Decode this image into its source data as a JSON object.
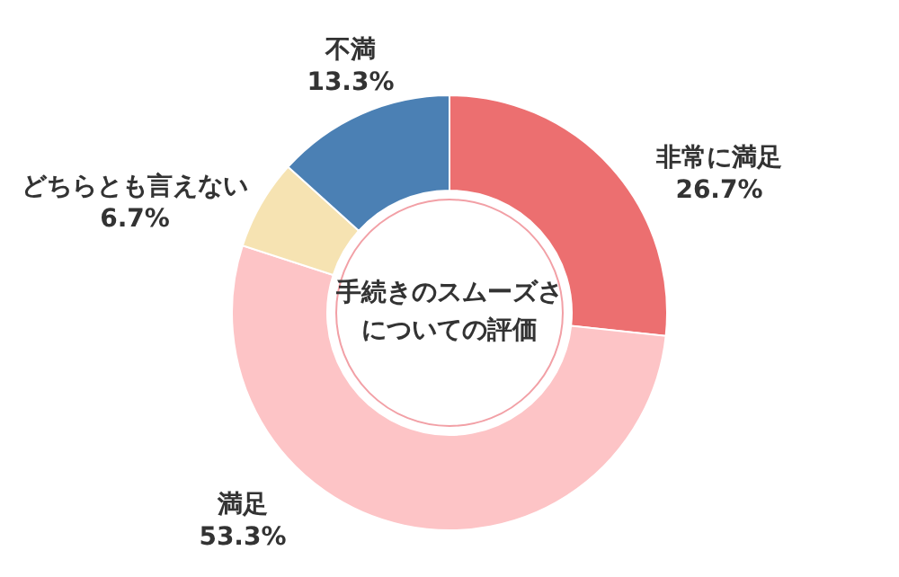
{
  "chart_data": {
    "type": "donut",
    "title": "手続きのスムーズさについての評価",
    "categories": [
      "非常に満足",
      "満足",
      "どちらとも言えない",
      "不満"
    ],
    "values": [
      26.7,
      53.3,
      6.7,
      13.3
    ],
    "value_labels": [
      "26.7%",
      "53.3%",
      "6.7%",
      "13.3%"
    ],
    "colors": [
      "#ec6f70",
      "#fdc4c6",
      "#f6e3b2",
      "#4b80b4"
    ]
  }
}
